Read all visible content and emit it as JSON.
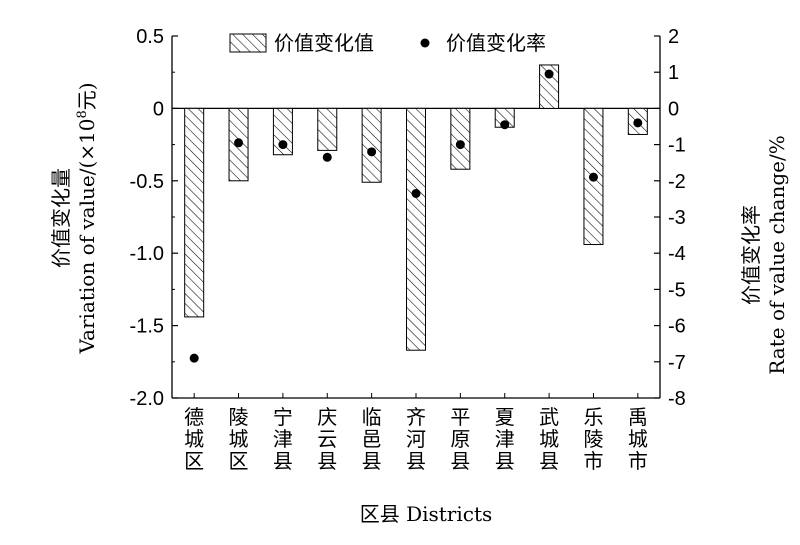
{
  "chart_data": {
    "type": "bar",
    "categories": [
      "德城区",
      "陵城区",
      "宁津县",
      "庆云县",
      "临邑县",
      "齐河县",
      "平原县",
      "夏津县",
      "武城县",
      "乐陵市",
      "禹城市"
    ],
    "series": [
      {
        "name": "价值变化值",
        "kind": "bar",
        "axis": "left",
        "values": [
          -1.44,
          -0.5,
          -0.32,
          -0.29,
          -0.51,
          -1.67,
          -0.42,
          -0.13,
          0.3,
          -0.94,
          -0.18
        ]
      },
      {
        "name": "价值变化率",
        "kind": "scatter",
        "axis": "right",
        "values": [
          -6.9,
          -0.95,
          -1.0,
          -1.35,
          -1.2,
          -2.35,
          -1.0,
          -0.45,
          0.95,
          -1.9,
          -0.4
        ]
      }
    ],
    "ylim": [
      -2.0,
      0.5
    ],
    "y_ticks": [
      "0.5",
      "0",
      "-0.5",
      "-1.0",
      "-1.5",
      "-2.0"
    ],
    "y_tick_values": [
      0.5,
      0,
      -0.5,
      -1.0,
      -1.5,
      -2.0
    ],
    "y2lim": [
      -8,
      2
    ],
    "y2_ticks": [
      "2",
      "1",
      "0",
      "-1",
      "-2",
      "-3",
      "-4",
      "-5",
      "-6",
      "-7",
      "-8"
    ],
    "y2_tick_values": [
      2,
      1,
      0,
      -1,
      -2,
      -3,
      -4,
      -5,
      -6,
      -7,
      -8
    ],
    "ylabel_cn": "价值变化量",
    "ylabel_en": "Variation of value/(×10",
    "ylabel_sup": "8",
    "ylabel_unit": "元)",
    "y2label_cn": "价值变化率",
    "y2label_en": "Rate of value change/%",
    "xlabel": "区县 Districts",
    "legend": {
      "bar_label": "价值变化值",
      "dot_label": "价值变化率",
      "placement": "top-center"
    },
    "grid": false,
    "colors": {
      "ink": "#000000",
      "hatch": "#000000",
      "background": "#ffffff"
    }
  }
}
